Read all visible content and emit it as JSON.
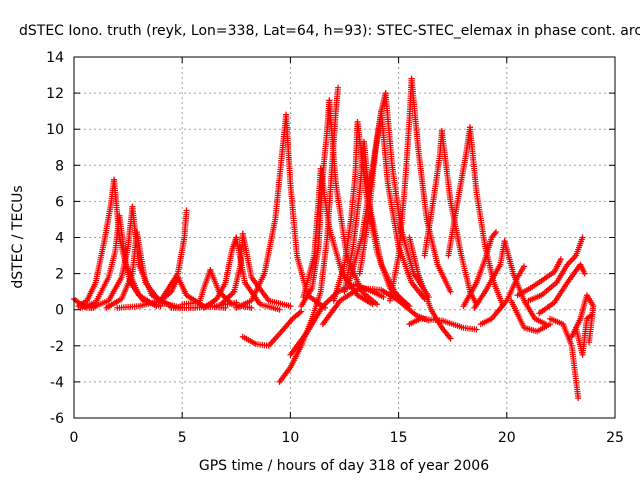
{
  "chart_data": {
    "type": "scatter",
    "title": "dSTEC Iono. truth (reyk, Lon=338, Lat=64, h=93): STEC-STEC_elemax in phase cont. arc",
    "xlabel": "GPS time / hours of day 318 of year 2006",
    "ylabel": "dSTEC  / TECUs",
    "xlim": [
      0,
      25
    ],
    "ylim": [
      -6,
      14
    ],
    "xticks": [
      "0",
      "5",
      "10",
      "15",
      "20",
      "25"
    ],
    "yticks": [
      "-6",
      "-4",
      "-2",
      "0",
      "2",
      "4",
      "6",
      "8",
      "10",
      "12",
      "14"
    ],
    "grid": true,
    "marker": "+",
    "color": "#ff0000",
    "arcs": [
      [
        [
          0.0,
          0.6
        ],
        [
          0.3,
          0.3
        ],
        [
          0.6,
          0.1
        ],
        [
          0.9,
          0.1
        ]
      ],
      [
        [
          0.2,
          0.2
        ],
        [
          0.6,
          0.5
        ],
        [
          1.0,
          1.5
        ],
        [
          1.4,
          3.8
        ],
        [
          1.7,
          5.8
        ],
        [
          1.85,
          7.2
        ]
      ],
      [
        [
          1.85,
          7.2
        ],
        [
          2.1,
          4.0
        ],
        [
          2.6,
          1.5
        ],
        [
          3.2,
          0.5
        ],
        [
          4.0,
          0.2
        ]
      ],
      [
        [
          0.3,
          0.1
        ],
        [
          1.0,
          0.4
        ],
        [
          1.6,
          1.8
        ],
        [
          1.9,
          3.2
        ],
        [
          2.1,
          5.2
        ]
      ],
      [
        [
          2.1,
          5.2
        ],
        [
          2.4,
          2.5
        ],
        [
          3.0,
          0.8
        ],
        [
          3.8,
          0.2
        ]
      ],
      [
        [
          0.8,
          0.1
        ],
        [
          1.6,
          0.5
        ],
        [
          2.2,
          1.8
        ],
        [
          2.5,
          3.5
        ],
        [
          2.7,
          5.7
        ]
      ],
      [
        [
          2.7,
          5.7
        ],
        [
          3.0,
          2.5
        ],
        [
          3.6,
          0.8
        ],
        [
          4.5,
          0.2
        ]
      ],
      [
        [
          1.5,
          0.1
        ],
        [
          2.2,
          0.6
        ],
        [
          2.7,
          2.0
        ],
        [
          2.9,
          4.3
        ]
      ],
      [
        [
          2.9,
          4.3
        ],
        [
          3.3,
          1.5
        ],
        [
          4.0,
          0.4
        ],
        [
          5.0,
          0.1
        ]
      ],
      [
        [
          2.0,
          0.1
        ],
        [
          3.0,
          0.2
        ],
        [
          4.0,
          0.5
        ],
        [
          4.8,
          2.0
        ],
        [
          5.1,
          4.0
        ],
        [
          5.2,
          5.5
        ]
      ],
      [
        [
          4.5,
          0.1
        ],
        [
          5.5,
          0.1
        ],
        [
          6.5,
          0.2
        ],
        [
          7.5,
          0.4
        ]
      ],
      [
        [
          4.0,
          0.5
        ],
        [
          4.5,
          1.0
        ],
        [
          4.8,
          1.8
        ]
      ],
      [
        [
          4.8,
          1.8
        ],
        [
          5.2,
          0.8
        ],
        [
          6.0,
          0.2
        ],
        [
          7.0,
          0.1
        ]
      ],
      [
        [
          5.0,
          0.3
        ],
        [
          5.8,
          0.4
        ],
        [
          6.0,
          1.2
        ],
        [
          6.3,
          2.2
        ]
      ],
      [
        [
          6.3,
          2.2
        ],
        [
          6.7,
          1.0
        ],
        [
          7.3,
          0.3
        ],
        [
          8.2,
          0.1
        ]
      ],
      [
        [
          6.0,
          0.1
        ],
        [
          6.6,
          0.6
        ],
        [
          7.0,
          1.5
        ],
        [
          7.3,
          3.3
        ],
        [
          7.5,
          4.0
        ]
      ],
      [
        [
          7.5,
          4.0
        ],
        [
          7.9,
          1.5
        ],
        [
          8.6,
          0.3
        ],
        [
          9.5,
          0.0
        ]
      ],
      [
        [
          6.8,
          0.3
        ],
        [
          7.4,
          1.0
        ],
        [
          7.7,
          2.5
        ],
        [
          7.8,
          4.2
        ]
      ],
      [
        [
          7.8,
          4.2
        ],
        [
          8.2,
          1.8
        ],
        [
          9.0,
          0.5
        ],
        [
          10.0,
          0.2
        ]
      ],
      [
        [
          7.8,
          -1.5
        ],
        [
          8.4,
          -1.9
        ],
        [
          9.0,
          -2.0
        ],
        [
          9.6,
          -1.2
        ],
        [
          10.1,
          -0.5
        ],
        [
          10.5,
          -0.1
        ]
      ],
      [
        [
          7.5,
          0.1
        ],
        [
          8.2,
          0.5
        ],
        [
          8.8,
          2.0
        ],
        [
          9.3,
          5.0
        ],
        [
          9.6,
          8.5
        ],
        [
          9.8,
          10.8
        ]
      ],
      [
        [
          9.8,
          10.8
        ],
        [
          10.0,
          7.0
        ],
        [
          10.3,
          3.0
        ],
        [
          10.8,
          0.8
        ],
        [
          11.6,
          0.1
        ]
      ],
      [
        [
          9.5,
          -4.0
        ],
        [
          10.0,
          -3.2
        ],
        [
          10.5,
          -2.0
        ],
        [
          11.0,
          -0.5
        ],
        [
          11.4,
          1.0
        ],
        [
          11.7,
          4.0
        ],
        [
          11.9,
          7.5
        ],
        [
          12.1,
          11.0
        ],
        [
          12.2,
          12.3
        ]
      ],
      [
        [
          10.5,
          0.2
        ],
        [
          11.0,
          1.2
        ],
        [
          11.3,
          3.5
        ],
        [
          11.5,
          7.5
        ],
        [
          11.7,
          10.0
        ],
        [
          11.8,
          11.6
        ]
      ],
      [
        [
          11.8,
          11.6
        ],
        [
          12.1,
          7.0
        ],
        [
          12.6,
          3.0
        ],
        [
          13.3,
          1.0
        ],
        [
          14.0,
          0.3
        ]
      ],
      [
        [
          10.0,
          -2.5
        ],
        [
          10.8,
          -1.2
        ],
        [
          11.5,
          0.2
        ],
        [
          12.2,
          1.0
        ],
        [
          13.0,
          1.4
        ],
        [
          13.8,
          1.0
        ],
        [
          14.3,
          0.7
        ]
      ],
      [
        [
          10.6,
          0.7
        ],
        [
          11.1,
          3.0
        ],
        [
          11.3,
          6.0
        ],
        [
          11.4,
          7.8
        ]
      ],
      [
        [
          11.4,
          7.8
        ],
        [
          11.8,
          4.5
        ],
        [
          12.4,
          2.0
        ],
        [
          13.1,
          0.8
        ],
        [
          13.8,
          0.3
        ]
      ],
      [
        [
          12.0,
          0.5
        ],
        [
          12.5,
          2.5
        ],
        [
          12.8,
          5.0
        ],
        [
          13.0,
          7.5
        ],
        [
          13.1,
          10.4
        ]
      ],
      [
        [
          13.1,
          10.4
        ],
        [
          13.5,
          6.5
        ],
        [
          14.0,
          3.2
        ],
        [
          14.6,
          1.2
        ],
        [
          15.3,
          0.4
        ]
      ],
      [
        [
          12.5,
          1.0
        ],
        [
          12.9,
          3.5
        ],
        [
          13.2,
          6.5
        ],
        [
          13.4,
          9.3
        ]
      ],
      [
        [
          13.4,
          9.3
        ],
        [
          13.7,
          5.5
        ],
        [
          14.2,
          2.5
        ],
        [
          14.9,
          0.8
        ],
        [
          15.5,
          0.2
        ]
      ],
      [
        [
          12.7,
          1.5
        ],
        [
          13.3,
          4.0
        ],
        [
          13.7,
          7.0
        ],
        [
          14.0,
          9.5
        ],
        [
          14.2,
          11.0
        ]
      ],
      [
        [
          14.2,
          11.0
        ],
        [
          14.5,
          7.0
        ],
        [
          15.0,
          3.5
        ],
        [
          15.6,
          1.5
        ],
        [
          16.2,
          0.6
        ]
      ],
      [
        [
          13.2,
          2.0
        ],
        [
          13.6,
          5.0
        ],
        [
          13.9,
          8.5
        ],
        [
          14.2,
          11.0
        ],
        [
          14.4,
          12.0
        ]
      ],
      [
        [
          14.4,
          12.0
        ],
        [
          14.7,
          8.0
        ],
        [
          15.1,
          4.5
        ],
        [
          15.7,
          2.0
        ],
        [
          16.4,
          0.7
        ]
      ],
      [
        [
          11.5,
          -0.8
        ],
        [
          12.3,
          0.5
        ],
        [
          13.2,
          1.2
        ],
        [
          14.2,
          1.1
        ],
        [
          15.0,
          0.5
        ],
        [
          15.8,
          -0.3
        ],
        [
          16.4,
          -0.6
        ]
      ],
      [
        [
          14.6,
          0.5
        ],
        [
          15.0,
          3.0
        ],
        [
          15.3,
          7.0
        ],
        [
          15.5,
          10.5
        ],
        [
          15.6,
          12.8
        ]
      ],
      [
        [
          15.6,
          12.8
        ],
        [
          15.9,
          9.0
        ],
        [
          16.3,
          5.0
        ],
        [
          16.8,
          2.5
        ],
        [
          17.4,
          1.0
        ]
      ],
      [
        [
          15.5,
          4.0
        ],
        [
          15.9,
          2.0
        ],
        [
          16.5,
          0.0
        ],
        [
          17.0,
          -1.0
        ],
        [
          17.4,
          -1.6
        ]
      ],
      [
        [
          16.2,
          3.0
        ],
        [
          16.6,
          6.0
        ],
        [
          16.9,
          8.5
        ],
        [
          17.0,
          9.9
        ]
      ],
      [
        [
          17.0,
          9.9
        ],
        [
          17.4,
          6.0
        ],
        [
          17.9,
          3.0
        ],
        [
          18.3,
          1.0
        ],
        [
          18.6,
          0.3
        ]
      ],
      [
        [
          15.5,
          -0.8
        ],
        [
          16.0,
          -0.5
        ],
        [
          17.0,
          -0.6
        ],
        [
          18.0,
          -1.0
        ],
        [
          18.6,
          -1.1
        ]
      ],
      [
        [
          17.3,
          3.0
        ],
        [
          17.8,
          6.5
        ],
        [
          18.1,
          8.5
        ],
        [
          18.3,
          10.1
        ]
      ],
      [
        [
          18.3,
          10.1
        ],
        [
          18.6,
          6.5
        ],
        [
          19.0,
          3.5
        ],
        [
          19.4,
          1.5
        ],
        [
          19.8,
          0.3
        ]
      ],
      [
        [
          18.0,
          0.2
        ],
        [
          18.6,
          1.5
        ],
        [
          19.0,
          2.8
        ],
        [
          19.3,
          4.0
        ],
        [
          19.5,
          4.3
        ]
      ],
      [
        [
          18.5,
          0.1
        ],
        [
          19.0,
          1.0
        ],
        [
          19.7,
          2.5
        ],
        [
          19.9,
          3.8
        ]
      ],
      [
        [
          19.9,
          3.8
        ],
        [
          20.3,
          2.0
        ],
        [
          20.8,
          0.5
        ],
        [
          21.3,
          -0.5
        ],
        [
          21.8,
          -0.8
        ]
      ],
      [
        [
          18.8,
          -0.8
        ],
        [
          19.3,
          -0.5
        ],
        [
          20.0,
          0.5
        ],
        [
          20.5,
          1.8
        ],
        [
          20.8,
          2.4
        ]
      ],
      [
        [
          20.2,
          0.5
        ],
        [
          20.8,
          -1.0
        ],
        [
          21.4,
          -1.2
        ],
        [
          22.0,
          -0.8
        ]
      ],
      [
        [
          20.5,
          0.8
        ],
        [
          21.1,
          1.2
        ],
        [
          21.6,
          1.6
        ],
        [
          22.2,
          2.1
        ],
        [
          22.5,
          2.8
        ]
      ],
      [
        [
          21.0,
          0.5
        ],
        [
          21.6,
          0.8
        ],
        [
          22.3,
          1.5
        ],
        [
          22.8,
          2.5
        ],
        [
          23.2,
          3.0
        ],
        [
          23.5,
          4.0
        ]
      ],
      [
        [
          22.0,
          -0.5
        ],
        [
          22.6,
          -0.8
        ],
        [
          23.0,
          -2.0
        ],
        [
          23.3,
          -4.9
        ]
      ],
      [
        [
          21.5,
          -0.2
        ],
        [
          22.2,
          0.4
        ],
        [
          22.8,
          1.5
        ],
        [
          23.4,
          2.5
        ],
        [
          23.6,
          2.0
        ]
      ],
      [
        [
          23.0,
          -1.5
        ],
        [
          23.4,
          -0.5
        ],
        [
          23.7,
          0.8
        ],
        [
          24.0,
          0.2
        ],
        [
          23.8,
          -1.8
        ]
      ],
      [
        [
          23.2,
          -1.0
        ],
        [
          23.5,
          -2.5
        ],
        [
          23.7,
          -0.5
        ],
        [
          23.9,
          -0.3
        ]
      ]
    ]
  }
}
